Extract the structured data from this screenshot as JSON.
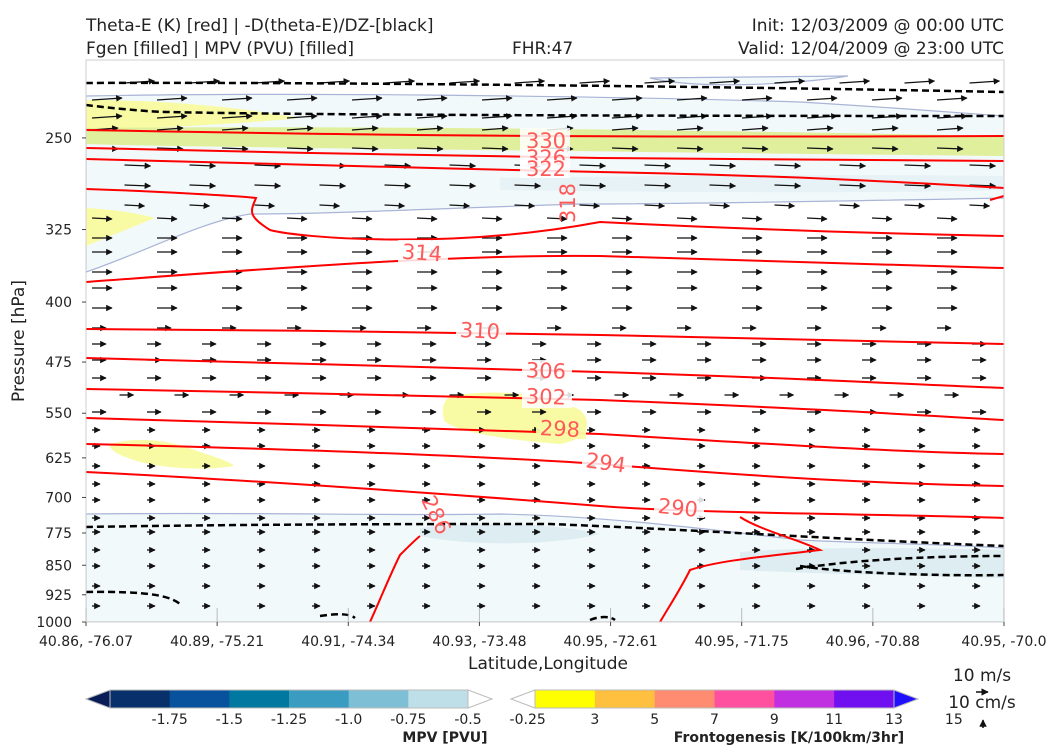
{
  "header": {
    "title_left_1": "Theta-E (K) [red] | -D(theta-E)/DZ-[black]",
    "title_left_2": "Fgen [filled] | MPV (PVU) [filled]",
    "fhr": "FHR:47",
    "init": "Init: 12/03/2009 @ 00:00 UTC",
    "valid": "Valid: 12/04/2009 @ 23:00 UTC"
  },
  "chart_data": {
    "type": "cross-section",
    "xlabel": "Latitude,Longitude",
    "ylabel": "Pressure [hPa]",
    "x_ticks": [
      "40.86, -76.07",
      "40.89, -75.21",
      "40.91, -74.34",
      "40.93, -73.48",
      "40.95, -72.61",
      "40.95, -71.75",
      "40.96, -70.88",
      "40.95, -70.0"
    ],
    "y_ticks": [
      250,
      325,
      400,
      475,
      550,
      625,
      700,
      775,
      850,
      925,
      1000
    ],
    "ylim": [
      1000,
      200
    ],
    "y_scale": "log",
    "theta_e_contours": {
      "color": "#ff0000",
      "labels": [
        "330",
        "326",
        "322",
        "318",
        "314",
        "310",
        "306",
        "302",
        "298",
        "294",
        "290",
        "286"
      ]
    },
    "mpv_colorbar": {
      "title": "MPV [PVU]",
      "ticks": [
        "-1.75",
        "-1.5",
        "-1.25",
        "-1.0",
        "-0.75",
        "-0.5",
        "-0.25"
      ],
      "colors": [
        "#081d58",
        "#08306b",
        "#08519c",
        "#0078a0",
        "#3a9cc0",
        "#7ebfd6",
        "#bfdfe8",
        "#ffffff"
      ]
    },
    "fgen_colorbar": {
      "title": "Frontogenesis [K/100km/3hr]",
      "ticks": [
        "3",
        "5",
        "7",
        "9",
        "11",
        "13",
        "15"
      ],
      "colors": [
        "#ffffff",
        "#ffff00",
        "#ffc040",
        "#ff8c70",
        "#ff50a0",
        "#c030e0",
        "#7010f0",
        "#2010ff"
      ]
    },
    "reference_vectors": {
      "horizontal": "10 m/s",
      "vertical": "10 cm/s"
    },
    "filled_colors": {
      "mpv_light": "#f2f9fa",
      "mpv_mid": "#ddedf2",
      "fgen_yellow": "#f8fba4",
      "fgen_green": "#e0ef9c"
    }
  }
}
